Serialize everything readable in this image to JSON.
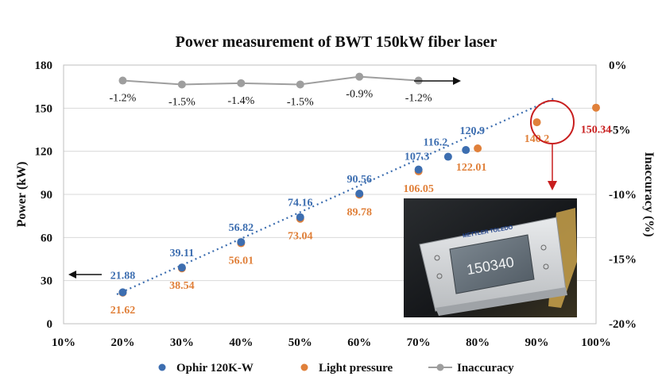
{
  "chart_data": {
    "type": "scatter",
    "title": "Power measurement of BWT 150kW fiber laser",
    "ylabel": "Power (kW)",
    "y2label": "Inaccuracy (%)",
    "x_ticks": [
      "10%",
      "20%",
      "30%",
      "40%",
      "50%",
      "60%",
      "70%",
      "80%",
      "90%",
      "100%"
    ],
    "y_ticks": [
      "0",
      "30",
      "60",
      "90",
      "120",
      "150",
      "180"
    ],
    "y2_ticks": [
      "0%",
      "-5%",
      "-10%",
      "-15%",
      "-20%"
    ],
    "ylim": [
      0,
      180
    ],
    "y2lim": [
      -20,
      0
    ],
    "grid": true,
    "legend": "bottom",
    "colors": {
      "ophir": "#3d6eb0",
      "light": "#e0803a",
      "inacc": "#9e9e9e",
      "highlight": "#c81e1e"
    },
    "series": [
      {
        "name": "Ophir 120K-W",
        "points": [
          {
            "x": 20,
            "y": 21.88,
            "label": "21.88"
          },
          {
            "x": 30,
            "y": 39.11,
            "label": "39.11"
          },
          {
            "x": 40,
            "y": 56.82,
            "label": "56.82"
          },
          {
            "x": 50,
            "y": 74.16,
            "label": "74.16"
          },
          {
            "x": 60,
            "y": 90.56,
            "label": "90.56"
          },
          {
            "x": 70,
            "y": 107.3,
            "label": "107.3"
          },
          {
            "x": 75,
            "y": 116.2,
            "label": "116.2"
          },
          {
            "x": 78,
            "y": 120.9,
            "label": "120.9"
          }
        ]
      },
      {
        "name": "Light pressure",
        "points": [
          {
            "x": 20,
            "y": 21.62,
            "label": "21.62"
          },
          {
            "x": 30,
            "y": 38.54,
            "label": "38.54"
          },
          {
            "x": 40,
            "y": 56.01,
            "label": "56.01"
          },
          {
            "x": 50,
            "y": 73.04,
            "label": "73.04"
          },
          {
            "x": 60,
            "y": 89.78,
            "label": "89.78"
          },
          {
            "x": 70,
            "y": 106.05,
            "label": "106.05"
          },
          {
            "x": 80,
            "y": 122.01,
            "label": "122.01"
          },
          {
            "x": 90,
            "y": 140.2,
            "label": "140.2"
          },
          {
            "x": 100,
            "y": 150.34,
            "label": "150.34"
          }
        ]
      },
      {
        "name": "Inaccuracy",
        "points": [
          {
            "x": 20,
            "y": -1.2,
            "label": "-1.2%"
          },
          {
            "x": 30,
            "y": -1.5,
            "label": "-1.5%"
          },
          {
            "x": 40,
            "y": -1.4,
            "label": "-1.4%"
          },
          {
            "x": 50,
            "y": -1.5,
            "label": "-1.5%"
          },
          {
            "x": 60,
            "y": -0.9,
            "label": "-0.9%"
          },
          {
            "x": 70,
            "y": -1.2,
            "label": "-1.2%"
          }
        ]
      }
    ],
    "device_display": {
      "brand": "METTLER TOLEDO",
      "reading": "150340"
    }
  }
}
